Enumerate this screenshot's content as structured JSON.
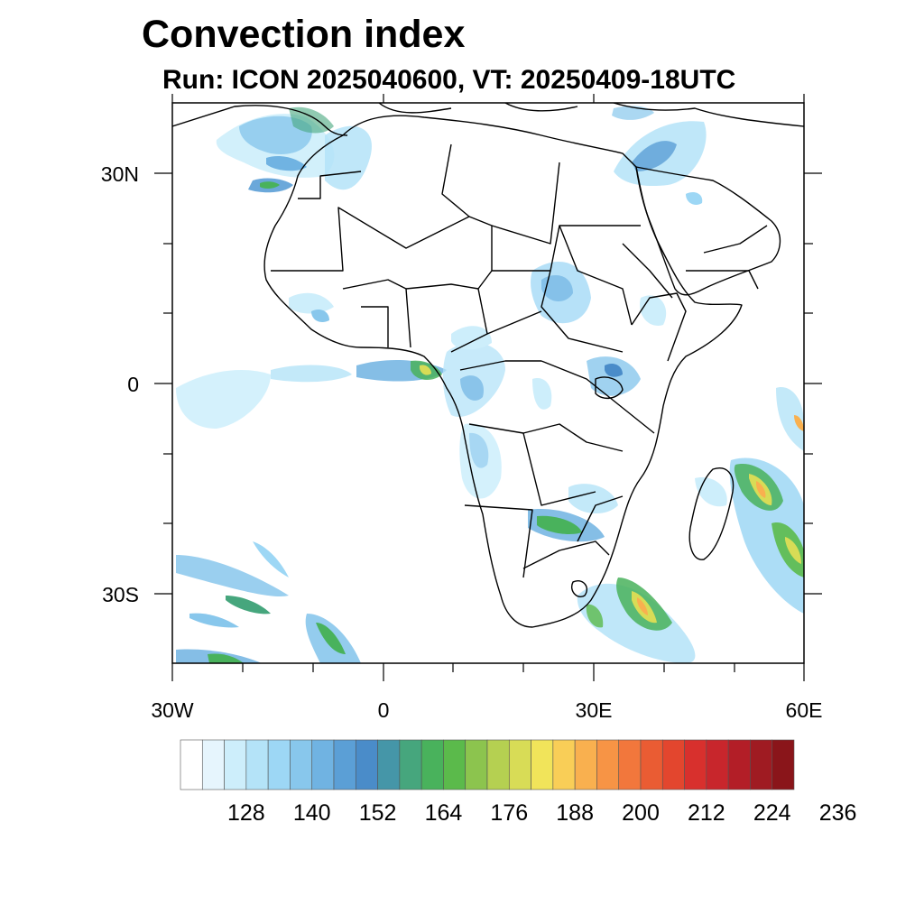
{
  "title": "Convection index",
  "subtitle": "Run: ICON 2025040600,  VT: 20250409-18UTC",
  "axes": {
    "lat_labels": [
      {
        "text": "30N",
        "lat": 30
      },
      {
        "text": "0",
        "lat": 0
      },
      {
        "text": "30S",
        "lat": -30
      }
    ],
    "lon_labels": [
      {
        "text": "30W",
        "lon": -30
      },
      {
        "text": "0",
        "lon": 0
      },
      {
        "text": "30E",
        "lon": 30
      },
      {
        "text": "60E",
        "lon": 60
      }
    ],
    "lon_range": [
      -30,
      60
    ],
    "lat_range": [
      -40,
      40
    ]
  },
  "colorbar": {
    "colors": [
      "#ffffff",
      "#e6f5fd",
      "#cdeefb",
      "#b4e3f8",
      "#9dd7f5",
      "#88c7ec",
      "#70b3e2",
      "#5b9fd6",
      "#4a8cc9",
      "#4596a8",
      "#46a67d",
      "#49b25c",
      "#5bba4b",
      "#8cc44e",
      "#b5d051",
      "#d8dc56",
      "#f1e45a",
      "#f9ce57",
      "#f9b04f",
      "#f79445",
      "#f2773c",
      "#ea5c33",
      "#e3462e",
      "#d8302d",
      "#c8262c",
      "#b31e27",
      "#9f1b22",
      "#8a151a"
    ],
    "tick_labels": [
      "128",
      "140",
      "152",
      "164",
      "176",
      "188",
      "200",
      "212",
      "224",
      "236"
    ]
  }
}
